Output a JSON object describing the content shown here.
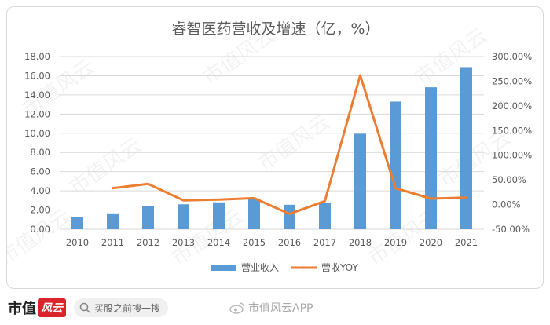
{
  "chart_data": {
    "type": "bar",
    "title": "睿智医药营收及增速（亿，%）",
    "categories": [
      "2010",
      "2011",
      "2012",
      "2013",
      "2014",
      "2015",
      "2016",
      "2017",
      "2018",
      "2019",
      "2020",
      "2021"
    ],
    "series": [
      {
        "name": "营业收入",
        "type": "bar",
        "axis": "left",
        "color": "#5b9bd5",
        "values": [
          1.25,
          1.65,
          2.4,
          2.6,
          2.8,
          3.2,
          2.55,
          2.75,
          9.95,
          13.3,
          14.8,
          16.9
        ]
      },
      {
        "name": "营收YOY",
        "type": "line",
        "axis": "right",
        "color": "#ed7d31",
        "values": [
          null,
          33.0,
          42.0,
          8.5,
          10.0,
          13.0,
          -19.0,
          7.0,
          262.0,
          33.0,
          12.0,
          14.0
        ]
      }
    ],
    "y_left": {
      "ylim": [
        0,
        18
      ],
      "ticks": [
        "0.00",
        "2.00",
        "4.00",
        "6.00",
        "8.00",
        "10.00",
        "12.00",
        "14.00",
        "16.00",
        "18.00"
      ]
    },
    "y_right": {
      "ylim": [
        -50,
        300
      ],
      "ticks": [
        "-50.00%",
        "0.00%",
        "50.00%",
        "100.00%",
        "150.00%",
        "200.00%",
        "250.00%",
        "300.00%"
      ]
    },
    "grid": true,
    "legend": "bottom"
  },
  "watermark": "市值风云",
  "footer": {
    "brand": "市值",
    "brand_stamp": "风云",
    "search_placeholder": "买股之前搜一搜",
    "weibo_text": "市值风云APP"
  }
}
